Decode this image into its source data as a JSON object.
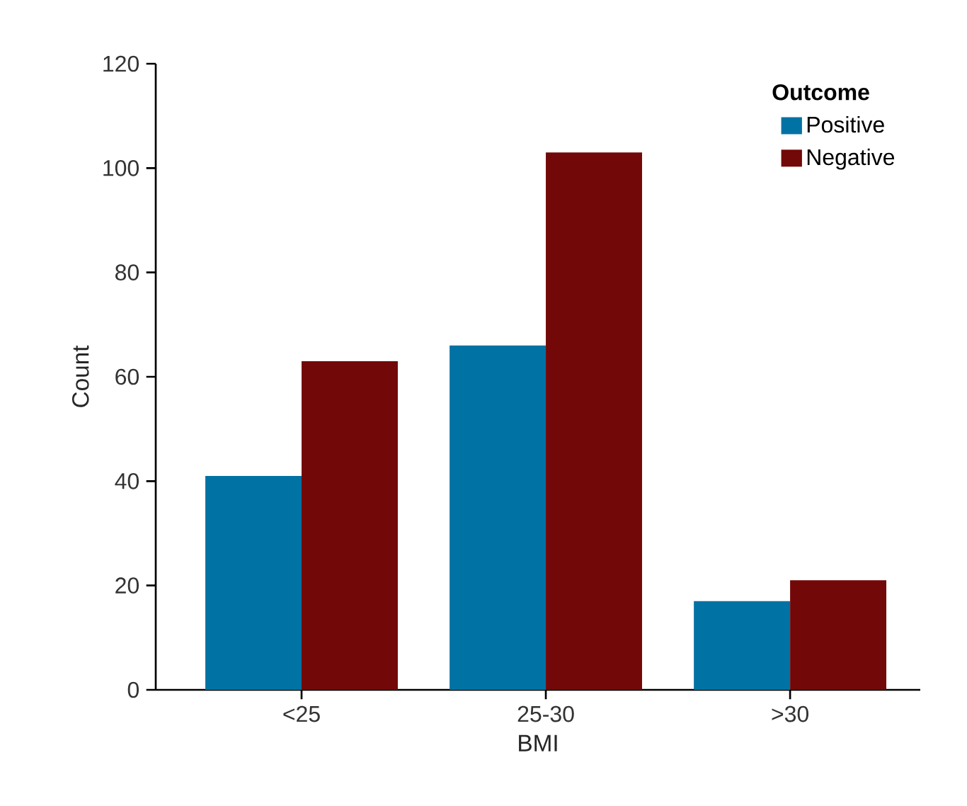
{
  "chart_data": {
    "type": "bar",
    "xlabel": "BMI",
    "ylabel": "Count",
    "legend_title": "Outcome",
    "categories": [
      "<25",
      "25-30",
      ">30"
    ],
    "series": [
      {
        "name": "Positive",
        "color": "#0072a3",
        "values": [
          41,
          66,
          17
        ]
      },
      {
        "name": "Negative",
        "color": "#730808",
        "values": [
          63,
          103,
          21
        ]
      }
    ],
    "ylim": [
      0,
      120
    ],
    "yticks": [
      0,
      20,
      40,
      60,
      80,
      100,
      120
    ],
    "grid": false,
    "legend": "top right"
  }
}
